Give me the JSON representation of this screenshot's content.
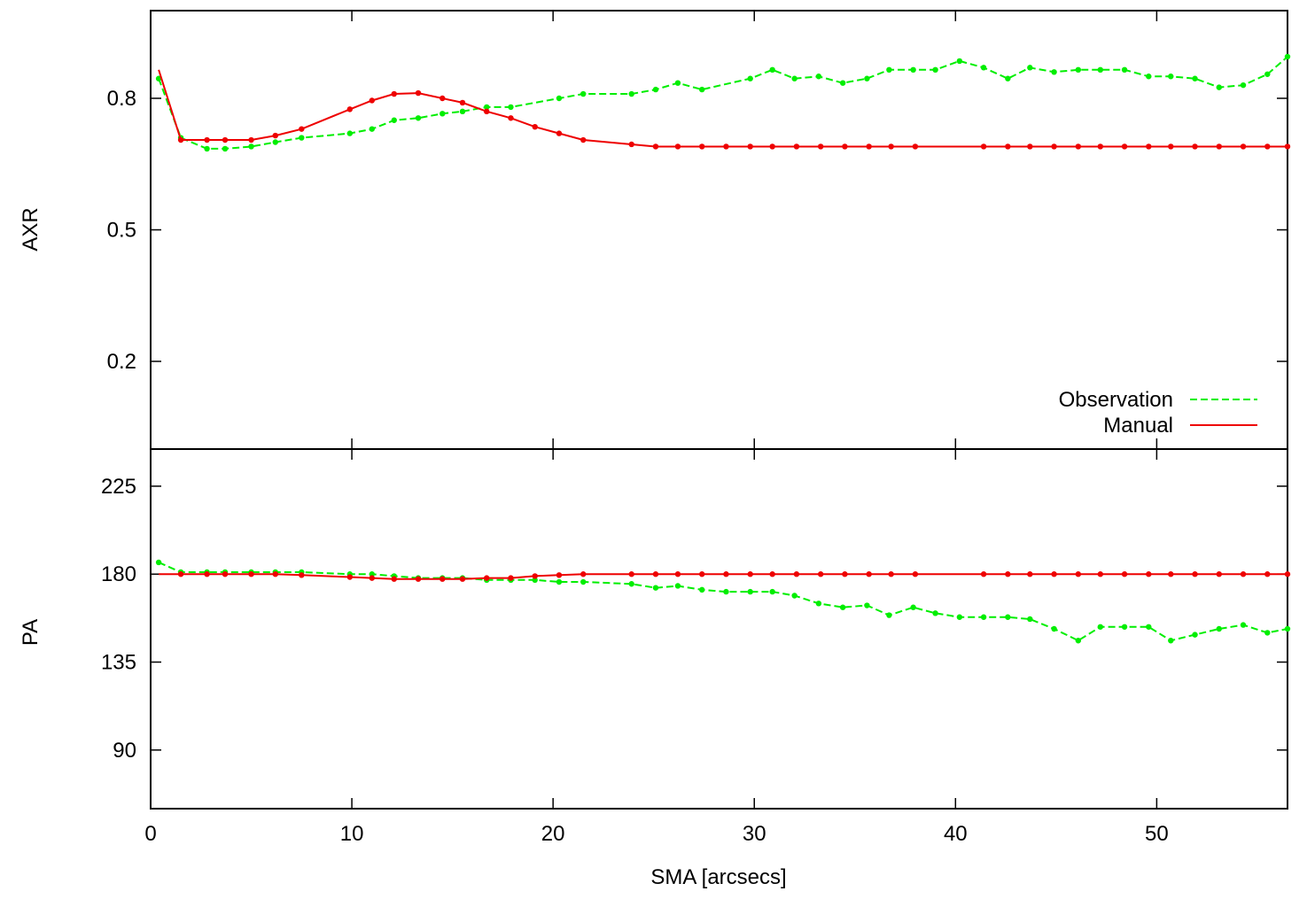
{
  "chart_data": [
    {
      "type": "line",
      "ylabel": "AXR",
      "xlim": [
        0,
        56.5
      ],
      "ylim": [
        -0.0,
        1.0
      ],
      "yticks": [
        0.2,
        0.5,
        0.8
      ],
      "legend_position": "bottom-right",
      "series": [
        {
          "name": "Observation",
          "color": "#00ee00",
          "dash": true,
          "x": [
            0.4,
            1.5,
            2.8,
            3.7,
            5.0,
            6.2,
            7.5,
            9.9,
            11.0,
            12.1,
            13.3,
            14.5,
            15.5,
            16.7,
            17.9,
            20.3,
            21.5,
            23.9,
            25.1,
            26.2,
            27.4,
            29.8,
            30.9,
            32.0,
            33.2,
            34.4,
            35.6,
            36.7,
            37.9,
            39.0,
            40.2,
            41.4,
            42.6,
            43.7,
            44.9,
            46.1,
            47.2,
            48.4,
            49.6,
            50.7,
            51.9,
            53.1,
            54.3,
            55.5,
            56.5
          ],
          "y": [
            0.845,
            0.71,
            0.685,
            0.685,
            0.69,
            0.7,
            0.71,
            0.72,
            0.73,
            0.75,
            0.755,
            0.765,
            0.77,
            0.78,
            0.78,
            0.8,
            0.81,
            0.81,
            0.82,
            0.835,
            0.82,
            0.845,
            0.865,
            0.845,
            0.85,
            0.835,
            0.845,
            0.865,
            0.865,
            0.865,
            0.885,
            0.87,
            0.845,
            0.87,
            0.86,
            0.865,
            0.865,
            0.865,
            0.85,
            0.85,
            0.845,
            0.825,
            0.83,
            0.855,
            0.895
          ]
        },
        {
          "name": "Manual",
          "color": "#ee0000",
          "dash": false,
          "x": [
            0.4,
            1.5,
            2.8,
            3.7,
            5.0,
            6.2,
            7.5,
            9.9,
            11.0,
            12.1,
            13.3,
            14.5,
            15.5,
            16.7,
            17.9,
            19.1,
            20.3,
            21.5,
            23.9,
            25.1,
            26.2,
            27.4,
            28.6,
            29.8,
            30.9,
            32.1,
            33.3,
            34.5,
            35.7,
            36.8,
            38.0,
            41.4,
            42.6,
            43.7,
            44.9,
            46.1,
            47.2,
            48.4,
            49.6,
            50.7,
            51.9,
            53.1,
            54.3,
            55.5,
            56.5
          ],
          "y": [
            0.865,
            0.705,
            0.705,
            0.705,
            0.705,
            0.715,
            0.73,
            0.775,
            0.795,
            0.81,
            0.812,
            0.8,
            0.79,
            0.77,
            0.755,
            0.735,
            0.72,
            0.705,
            0.695,
            0.69,
            0.69,
            0.69,
            0.69,
            0.69,
            0.69,
            0.69,
            0.69,
            0.69,
            0.69,
            0.69,
            0.69,
            0.69,
            0.69,
            0.69,
            0.69,
            0.69,
            0.69,
            0.69,
            0.69,
            0.69,
            0.69,
            0.69,
            0.69,
            0.69,
            0.69
          ]
        }
      ]
    },
    {
      "type": "line",
      "xlabel": "SMA [arcsecs]",
      "ylabel": "PA",
      "xlim": [
        0,
        56.5
      ],
      "ylim": [
        60,
        244
      ],
      "xticks": [
        0,
        10,
        20,
        30,
        40,
        50
      ],
      "yticks": [
        90,
        135,
        180,
        225
      ],
      "series": [
        {
          "name": "Observation",
          "color": "#00ee00",
          "dash": true,
          "x": [
            0.4,
            1.5,
            2.8,
            3.7,
            5.0,
            6.2,
            7.5,
            9.9,
            11.0,
            12.1,
            13.3,
            14.5,
            15.5,
            16.7,
            17.9,
            19.1,
            20.3,
            21.5,
            23.9,
            25.1,
            26.2,
            27.4,
            28.6,
            29.8,
            30.9,
            32.0,
            33.2,
            34.4,
            35.6,
            36.7,
            37.9,
            39.0,
            40.2,
            41.4,
            42.6,
            43.7,
            44.9,
            46.1,
            47.2,
            48.4,
            49.6,
            50.7,
            51.9,
            53.1,
            54.3,
            55.5,
            56.5
          ],
          "y": [
            186,
            181,
            181,
            181,
            181,
            181,
            181,
            180,
            180,
            179,
            178,
            178,
            178,
            177,
            177,
            177,
            176,
            176,
            175,
            173,
            174,
            172,
            171,
            171,
            171,
            169,
            165,
            163,
            164,
            159,
            163,
            160,
            158,
            158,
            158,
            157,
            152,
            146,
            153,
            153,
            153,
            146,
            149,
            152,
            154,
            150,
            152
          ]
        },
        {
          "name": "Manual",
          "color": "#ee0000",
          "dash": false,
          "x": [
            0.4,
            1.5,
            2.8,
            3.7,
            5.0,
            6.2,
            7.5,
            9.9,
            11.0,
            12.1,
            13.3,
            14.5,
            15.5,
            16.7,
            17.9,
            19.1,
            20.3,
            21.5,
            23.9,
            25.1,
            26.2,
            27.4,
            28.6,
            29.8,
            30.9,
            32.1,
            33.3,
            34.5,
            35.7,
            36.8,
            38.0,
            41.4,
            42.6,
            43.7,
            44.9,
            46.1,
            47.2,
            48.4,
            49.6,
            50.7,
            51.9,
            53.1,
            54.3,
            55.5,
            56.5
          ],
          "y": [
            180,
            180,
            180,
            180,
            180,
            180,
            179.5,
            178.5,
            178,
            177.5,
            177.5,
            177.5,
            177.5,
            178,
            178,
            179,
            179.5,
            180,
            180,
            180,
            180,
            180,
            180,
            180,
            180,
            180,
            180,
            180,
            180,
            180,
            180,
            180,
            180,
            180,
            180,
            180,
            180,
            180,
            180,
            180,
            180,
            180,
            180,
            180,
            180
          ]
        }
      ]
    }
  ]
}
